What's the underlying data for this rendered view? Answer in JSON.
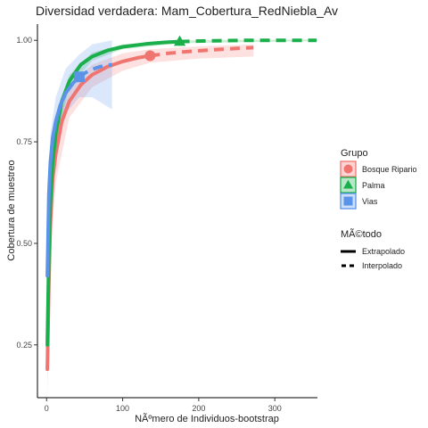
{
  "chart_data": {
    "type": "line",
    "title": "Diversidad verdadera: Mam_Cobertura_RedNiebla_Av",
    "xlabel": "NÃºmero de Individuos-bootstrap",
    "ylabel": "Cobertura de muestreo",
    "xlim": [
      -12,
      356
    ],
    "ylim": [
      0.12,
      1.04
    ],
    "x_ticks": [
      0,
      100,
      200,
      300
    ],
    "y_ticks": [
      0.25,
      0.5,
      0.75,
      1.0
    ],
    "x_tick_labels": [
      "0",
      "100",
      "200",
      "300"
    ],
    "y_tick_labels": [
      "0.25",
      "0.50",
      "0.75",
      "1.00"
    ],
    "legend": {
      "group_title": "Grupo",
      "method_title": "MÃ©todo",
      "method_items": [
        "Extrapolado",
        "Interpolado"
      ]
    },
    "series": [
      {
        "name": "Bosque Ripario",
        "color": "#F07570",
        "marker": "circle",
        "observed": [
          136,
          0.962
        ],
        "interpolated": [
          [
            1,
            0.19
          ],
          [
            3,
            0.4
          ],
          [
            5,
            0.55
          ],
          [
            8,
            0.66
          ],
          [
            12,
            0.72
          ],
          [
            20,
            0.8
          ],
          [
            30,
            0.85
          ],
          [
            45,
            0.89
          ],
          [
            60,
            0.915
          ],
          [
            80,
            0.935
          ],
          [
            100,
            0.948
          ],
          [
            120,
            0.957
          ],
          [
            136,
            0.962
          ]
        ],
        "extrapolated": [
          [
            136,
            0.962
          ],
          [
            160,
            0.968
          ],
          [
            190,
            0.973
          ],
          [
            220,
            0.977
          ],
          [
            250,
            0.98
          ],
          [
            272,
            0.982
          ]
        ],
        "band": [
          [
            1,
            0.13,
            0.26
          ],
          [
            5,
            0.47,
            0.62
          ],
          [
            12,
            0.65,
            0.78
          ],
          [
            30,
            0.81,
            0.89
          ],
          [
            60,
            0.885,
            0.94
          ],
          [
            100,
            0.925,
            0.968
          ],
          [
            136,
            0.945,
            0.978
          ],
          [
            200,
            0.955,
            0.985
          ],
          [
            272,
            0.96,
            0.99
          ]
        ]
      },
      {
        "name": "Palma",
        "color": "#1BAF4B",
        "marker": "triangle",
        "observed": [
          175,
          0.997
        ],
        "interpolated": [
          [
            1,
            0.25
          ],
          [
            3,
            0.47
          ],
          [
            5,
            0.6
          ],
          [
            8,
            0.7
          ],
          [
            12,
            0.77
          ],
          [
            20,
            0.85
          ],
          [
            30,
            0.9
          ],
          [
            45,
            0.94
          ],
          [
            60,
            0.96
          ],
          [
            80,
            0.975
          ],
          [
            100,
            0.984
          ],
          [
            130,
            0.991
          ],
          [
            155,
            0.995
          ],
          [
            175,
            0.997
          ]
        ],
        "extrapolated": [
          [
            175,
            0.997
          ],
          [
            220,
            0.999
          ],
          [
            270,
            1.0
          ],
          [
            355,
            1.0
          ]
        ],
        "band": [
          [
            1,
            0.22,
            0.28
          ],
          [
            5,
            0.57,
            0.63
          ],
          [
            12,
            0.75,
            0.79
          ],
          [
            30,
            0.885,
            0.915
          ],
          [
            60,
            0.95,
            0.97
          ],
          [
            100,
            0.978,
            0.99
          ],
          [
            175,
            0.993,
            1.0
          ],
          [
            355,
            0.998,
            1.002
          ]
        ]
      },
      {
        "name": "Vias",
        "color": "#5B93E8",
        "marker": "square",
        "observed": [
          43,
          0.91
        ],
        "interpolated": [
          [
            1,
            0.42
          ],
          [
            3,
            0.62
          ],
          [
            5,
            0.7
          ],
          [
            8,
            0.76
          ],
          [
            12,
            0.8
          ],
          [
            18,
            0.84
          ],
          [
            25,
            0.87
          ],
          [
            35,
            0.895
          ],
          [
            43,
            0.91
          ]
        ],
        "extrapolated": [
          [
            43,
            0.91
          ],
          [
            55,
            0.925
          ],
          [
            70,
            0.935
          ],
          [
            86,
            0.94
          ]
        ],
        "band": [
          [
            1,
            0.36,
            0.5
          ],
          [
            5,
            0.64,
            0.77
          ],
          [
            12,
            0.74,
            0.86
          ],
          [
            25,
            0.82,
            0.93
          ],
          [
            43,
            0.86,
            0.965
          ],
          [
            60,
            0.86,
            0.99
          ],
          [
            86,
            0.83,
            1.0
          ]
        ]
      }
    ]
  }
}
